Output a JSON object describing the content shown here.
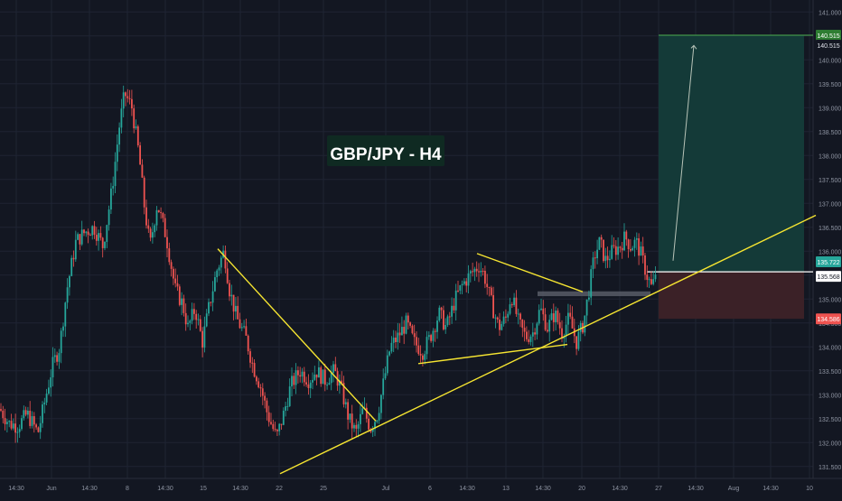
{
  "colors": {
    "background": "#131722",
    "grid": "#1f2433",
    "bull": "#26a69a",
    "bear": "#ef5350",
    "trendline": "#f6e531",
    "target_zone": "#143a38",
    "stop_zone": "#3b2127",
    "target_line": "#4caf50",
    "axis_text": "#8f95a3"
  },
  "title": "GBP/JPY -  H4",
  "chart_data": {
    "type": "candlestick",
    "title": "GBP/JPY -  H4",
    "ylim": [
      131.25,
      141.25
    ],
    "x_index_range": [
      0,
      932
    ],
    "y_axis_ticks": [
      "141.000",
      "140.500",
      "140.000",
      "139.500",
      "139.000",
      "138.500",
      "138.000",
      "137.500",
      "137.000",
      "136.500",
      "136.000",
      "135.500",
      "135.000",
      "134.500",
      "134.000",
      "133.500",
      "133.000",
      "132.500",
      "132.000",
      "131.500"
    ],
    "x_axis_ticks": [
      {
        "label": "14:30",
        "x": 18
      },
      {
        "label": "Jun",
        "x": 57
      },
      {
        "label": "14:30",
        "x": 99
      },
      {
        "label": "8",
        "x": 141
      },
      {
        "label": "14:30",
        "x": 183
      },
      {
        "label": "15",
        "x": 225
      },
      {
        "label": "14:30",
        "x": 266
      },
      {
        "label": "22",
        "x": 309
      },
      {
        "label": "25",
        "x": 358
      },
      {
        "label": "Jul",
        "x": 427
      },
      {
        "label": "6",
        "x": 476
      },
      {
        "label": "14:30",
        "x": 517
      },
      {
        "label": "13",
        "x": 560
      },
      {
        "label": "14:30",
        "x": 601
      },
      {
        "label": "20",
        "x": 644
      },
      {
        "label": "14:30",
        "x": 686
      },
      {
        "label": "27",
        "x": 729
      },
      {
        "label": "14:30",
        "x": 770
      },
      {
        "label": "Aug",
        "x": 812
      },
      {
        "label": "14:30",
        "x": 853
      },
      {
        "label": "10",
        "x": 896
      }
    ],
    "price_anchors": [
      [
        0,
        132.7
      ],
      [
        10,
        132.4
      ],
      [
        20,
        132.35
      ],
      [
        30,
        132.6
      ],
      [
        42,
        132.2
      ],
      [
        50,
        132.9
      ],
      [
        58,
        133.6
      ],
      [
        66,
        134.0
      ],
      [
        74,
        135.2
      ],
      [
        84,
        136.2
      ],
      [
        94,
        136.4
      ],
      [
        104,
        136.5
      ],
      [
        114,
        136.1
      ],
      [
        124,
        137.3
      ],
      [
        132,
        138.6
      ],
      [
        138,
        139.3
      ],
      [
        146,
        139.0
      ],
      [
        154,
        138.0
      ],
      [
        160,
        136.9
      ],
      [
        166,
        136.1
      ],
      [
        174,
        137.0
      ],
      [
        184,
        136.3
      ],
      [
        194,
        135.2
      ],
      [
        202,
        134.9
      ],
      [
        208,
        134.4
      ],
      [
        216,
        134.8
      ],
      [
        224,
        134.1
      ],
      [
        232,
        134.9
      ],
      [
        240,
        135.6
      ],
      [
        248,
        136.0
      ],
      [
        254,
        135.2
      ],
      [
        262,
        134.6
      ],
      [
        272,
        134.2
      ],
      [
        280,
        133.6
      ],
      [
        288,
        133.2
      ],
      [
        296,
        132.6
      ],
      [
        306,
        132.1
      ],
      [
        314,
        132.6
      ],
      [
        322,
        133.2
      ],
      [
        332,
        133.5
      ],
      [
        342,
        133.3
      ],
      [
        350,
        133.5
      ],
      [
        360,
        133.3
      ],
      [
        370,
        133.5
      ],
      [
        378,
        133.1
      ],
      [
        386,
        132.5
      ],
      [
        394,
        132.2
      ],
      [
        402,
        132.7
      ],
      [
        410,
        132.3
      ],
      [
        418,
        132.6
      ],
      [
        424,
        133.2
      ],
      [
        432,
        134.0
      ],
      [
        440,
        134.2
      ],
      [
        450,
        134.5
      ],
      [
        458,
        134.1
      ],
      [
        468,
        133.9
      ],
      [
        476,
        134.2
      ],
      [
        486,
        134.7
      ],
      [
        494,
        134.4
      ],
      [
        504,
        135.0
      ],
      [
        512,
        135.3
      ],
      [
        520,
        135.5
      ],
      [
        530,
        135.7
      ],
      [
        536,
        135.5
      ],
      [
        544,
        134.9
      ],
      [
        552,
        134.4
      ],
      [
        560,
        134.6
      ],
      [
        566,
        135.1
      ],
      [
        574,
        134.5
      ],
      [
        582,
        134.2
      ],
      [
        590,
        134.3
      ],
      [
        598,
        134.8
      ],
      [
        606,
        134.4
      ],
      [
        614,
        134.7
      ],
      [
        622,
        134.3
      ],
      [
        630,
        134.6
      ],
      [
        638,
        134.1
      ],
      [
        646,
        134.5
      ],
      [
        652,
        135.2
      ],
      [
        658,
        135.9
      ],
      [
        664,
        136.2
      ],
      [
        670,
        135.8
      ],
      [
        678,
        136.0
      ],
      [
        686,
        136.1
      ],
      [
        692,
        136.3
      ],
      [
        698,
        136.1
      ],
      [
        704,
        136.2
      ],
      [
        710,
        135.9
      ],
      [
        716,
        135.5
      ],
      [
        722,
        135.2
      ],
      [
        726,
        135.6
      ]
    ],
    "trendlines": [
      {
        "x1": 241,
        "y1": 136.05,
        "x2": 416,
        "y2": 132.45
      },
      {
        "x1": 310,
        "y1": 131.35,
        "x2": 903,
        "y2": 136.75
      },
      {
        "x1": 528,
        "y1": 135.95,
        "x2": 645,
        "y2": 135.15
      },
      {
        "x1": 463,
        "y1": 133.65,
        "x2": 628,
        "y2": 134.05
      }
    ],
    "resistance_box": {
      "x1": 595,
      "y1": 135.16,
      "x2": 720,
      "y2": 135.06
    },
    "position": {
      "type": "long",
      "x_start": 729,
      "x_end": 890,
      "entry": 135.568,
      "target": 140.515,
      "stop": 134.586
    },
    "target_arrow": {
      "x1": 745,
      "y1": 135.8,
      "x2": 768,
      "y2": 140.3
    }
  },
  "price_labels": {
    "target_top": "140.515",
    "target": "140.515",
    "current": "135.722",
    "entry": "135.568",
    "stop": "134.586"
  }
}
